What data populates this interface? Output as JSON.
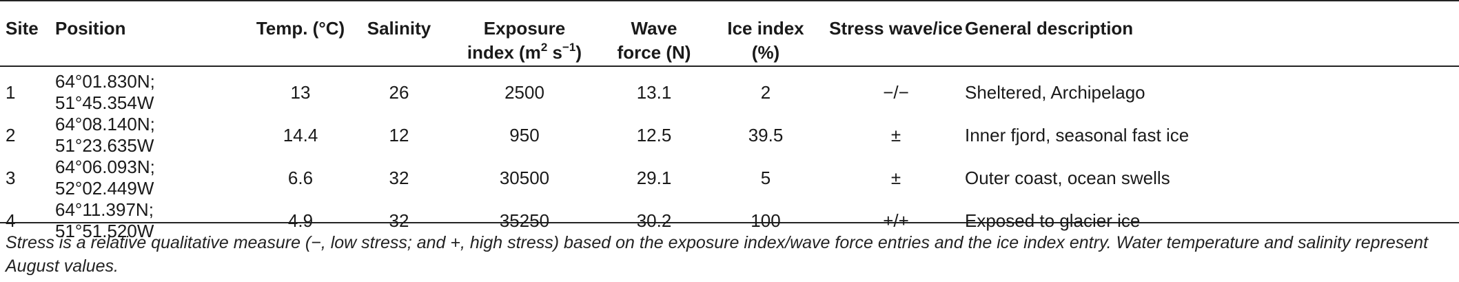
{
  "headers": {
    "site": "Site",
    "position": "Position",
    "temp": "Temp. (°C)",
    "salinity": "Salinity",
    "exposure_line1": "Exposure",
    "exposure_line2_pre": "index (m",
    "exposure_sup1": "2",
    "exposure_mid": " s",
    "exposure_sup2": "−1",
    "exposure_post": ")",
    "wave_line1": "Wave",
    "wave_line2": "force (N)",
    "ice_line1": "Ice index",
    "ice_line2": "(%)",
    "stress": "Stress wave/ice",
    "description": "General description"
  },
  "rows": [
    {
      "site": "1",
      "position": "64°01.830N; 51°45.354W",
      "temp": "13",
      "salinity": "26",
      "exposure": "2500",
      "wave": "13.1",
      "ice": "2",
      "stress": "−/−",
      "description": "Sheltered, Archipelago"
    },
    {
      "site": "2",
      "position": "64°08.140N; 51°23.635W",
      "temp": "14.4",
      "salinity": "12",
      "exposure": "950",
      "wave": "12.5",
      "ice": "39.5",
      "stress": "±",
      "description": "Inner fjord, seasonal fast ice"
    },
    {
      "site": "3",
      "position": "64°06.093N; 52°02.449W",
      "temp": "6.6",
      "salinity": "32",
      "exposure": "30500",
      "wave": "29.1",
      "ice": "5",
      "stress": "±",
      "description": "Outer coast, ocean swells"
    },
    {
      "site": "4",
      "position": "64°11.397N; 51°51.520W",
      "temp": "4.9",
      "salinity": "32",
      "exposure": "35250",
      "wave": "30.2",
      "ice": "100",
      "stress": "+/+",
      "description": "Exposed to glacier ice"
    }
  ],
  "footnote": "Stress is a relative qualitative measure (−, low stress; and +, high stress) based on the exposure index/wave force entries and the ice index entry. Water temperature and salinity represent August values."
}
